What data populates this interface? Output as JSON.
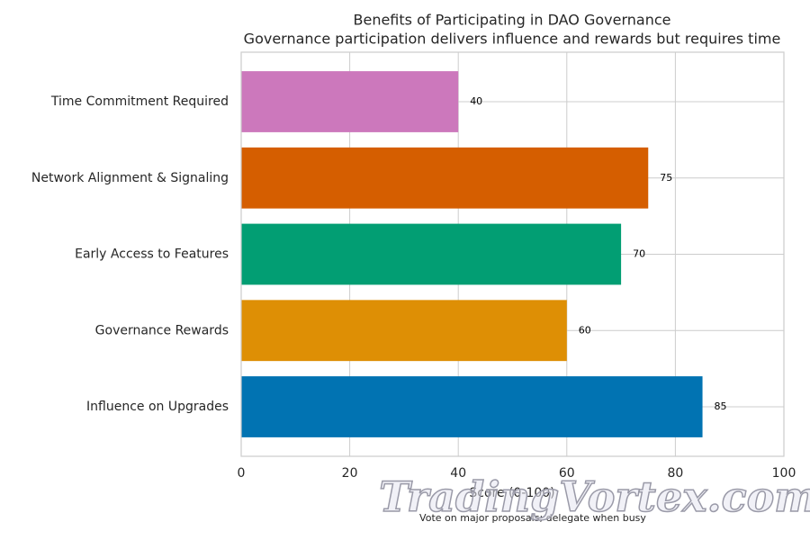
{
  "chart_data": {
    "type": "barh",
    "title": "Benefits of Participating in DAO Governance",
    "subtitle": "Governance participation delivers influence and rewards but requires time",
    "xlabel": "Score (0-100)",
    "caption": "Vote on major proposals; delegate when busy",
    "watermark": "TradingVortex.com",
    "categories": [
      "Influence on Upgrades",
      "Governance Rewards",
      "Early Access to Features",
      "Network Alignment & Signaling",
      "Time Commitment Required"
    ],
    "values": [
      85,
      60,
      70,
      75,
      40
    ],
    "colors": [
      "#0173b2",
      "#de8f05",
      "#029e73",
      "#d55e00",
      "#cc78bc"
    ],
    "xlim": [
      0,
      100
    ],
    "xticks": [
      0,
      20,
      40,
      60,
      80,
      100
    ],
    "grid": true
  }
}
